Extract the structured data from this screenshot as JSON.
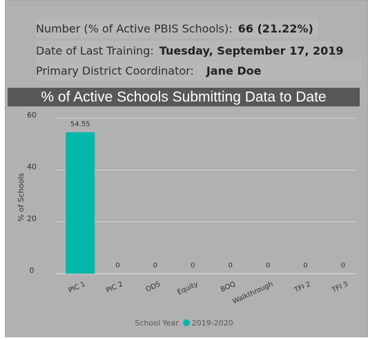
{
  "summary": {
    "number_label": "Number (% of Active PBIS Schools):",
    "number_value": "66 (21.22%)",
    "training_label": "Date of Last Training:",
    "training_value": "Tuesday, September 17, 2019",
    "coordinator_label": "Primary District Coordinator:",
    "coordinator_value": "Jane Doe"
  },
  "chart_data": {
    "type": "bar",
    "title": "% of Active Schools Submitting Data to Date",
    "categories": [
      "PIC 1",
      "PIC 2",
      "ODS",
      "Equity",
      "BOQ",
      "Walkthrough",
      "TFI 2",
      "TFI 3"
    ],
    "series": [
      {
        "name": "2019-2020",
        "values": [
          54.55,
          0,
          0,
          0,
          0,
          0,
          0,
          0
        ],
        "labels": [
          "54.55",
          "0",
          "0",
          "0",
          "0",
          "0",
          "0",
          "0"
        ],
        "color": "#01b8aa"
      }
    ],
    "ylabel": "% of Schools",
    "xlabel": "",
    "ylim": [
      0,
      60
    ],
    "yticks": [
      0,
      20,
      40,
      60
    ],
    "grid": true,
    "legend_title": "School Year",
    "legend_position": "bottom-center"
  }
}
